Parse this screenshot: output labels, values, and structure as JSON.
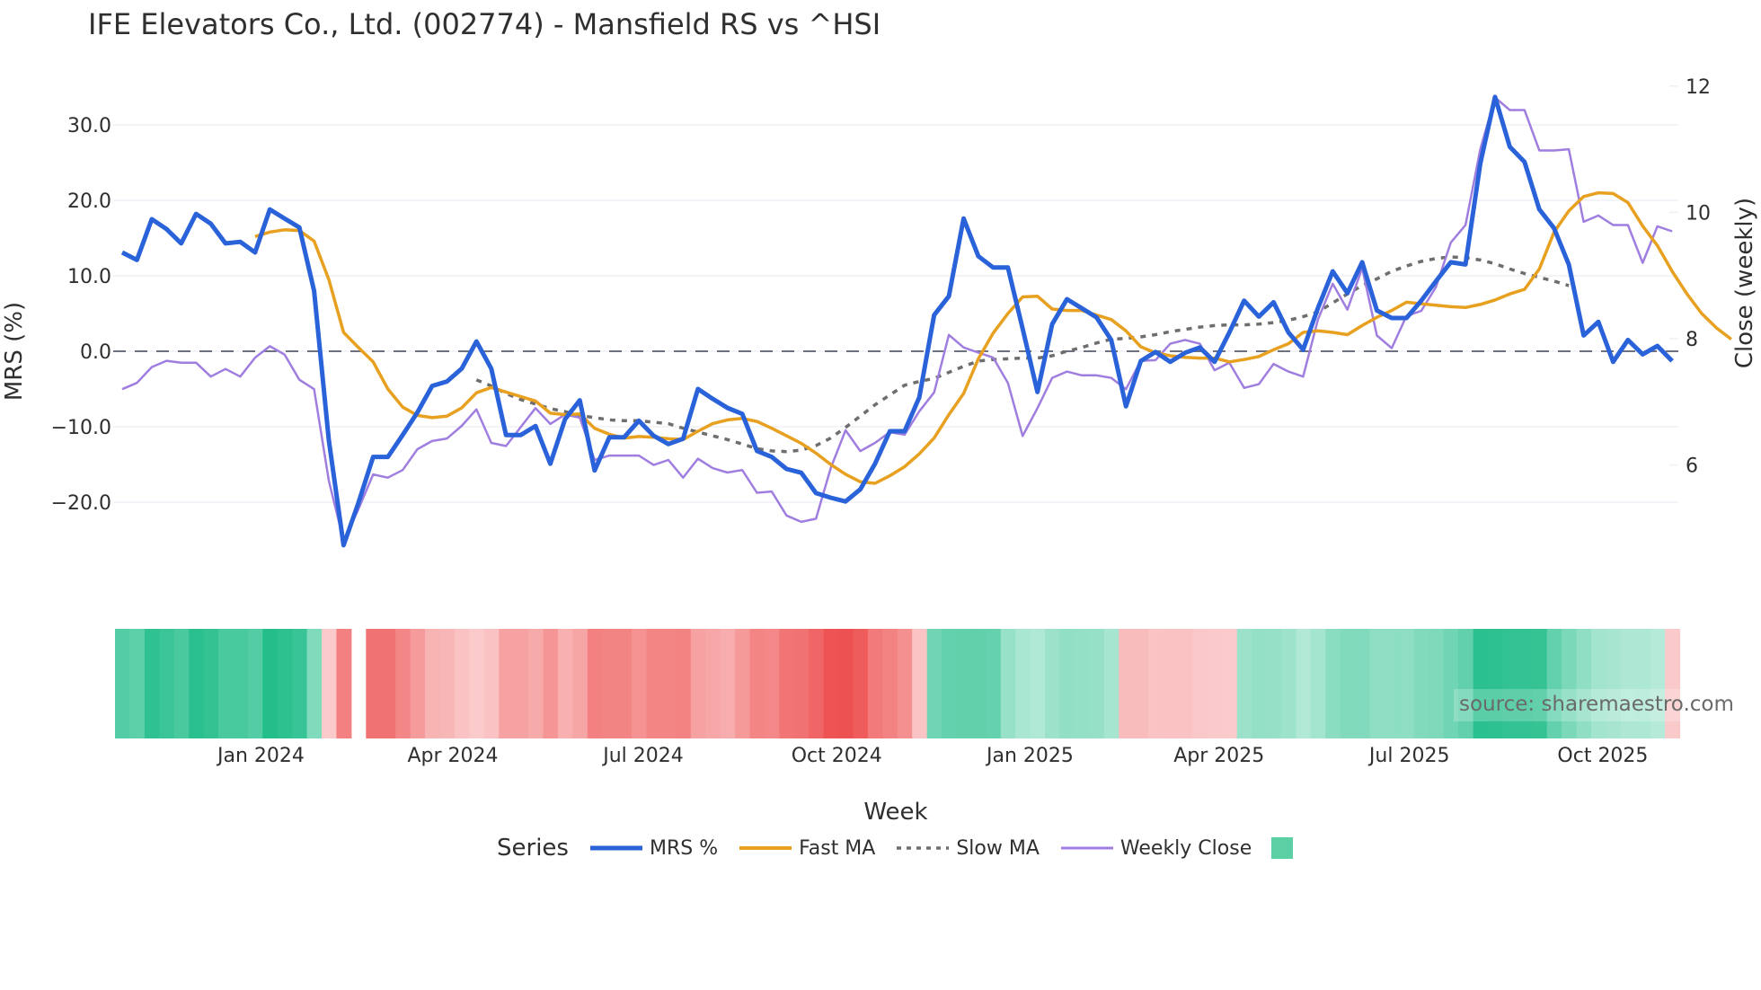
{
  "title": "IFE Elevators Co., Ltd. (002774) - Mansfield RS vs ^HSI",
  "source": "source: sharemaestro.com",
  "legend": {
    "title": "Series",
    "items": [
      {
        "label": "MRS %",
        "color": "#2962d9",
        "style": "solid"
      },
      {
        "label": "Fast MA",
        "color": "#e8a020",
        "style": "solid"
      },
      {
        "label": "Slow MA",
        "color": "#6e6e6e",
        "style": "dotted"
      },
      {
        "label": "Weekly Close",
        "color": "#a07ee0",
        "style": "solid"
      },
      {
        "label": "",
        "color": "#5ccfa4",
        "style": "box"
      }
    ]
  },
  "colors": {
    "mrs": "#2962d9",
    "fast_ma": "#e8a020",
    "slow_ma": "#6e6e6e",
    "close": "#a07ee0",
    "zero_line": "#6e7280",
    "grid": "#eef0f5",
    "pos_strong": "#22bd8a",
    "neg_strong": "#ee5050"
  },
  "chart_data": {
    "type": "line",
    "title": "IFE Elevators Co., Ltd. (002774) - Mansfield RS vs ^HSI",
    "xlabel": "Week",
    "ylabel": "MRS (%)",
    "y2label": "Close (weekly)",
    "ylim": [
      -27,
      35
    ],
    "y2lim": [
      4.7,
      12.2
    ],
    "yticks": [
      "30.0",
      "20.0",
      "10.0",
      "0.0",
      "−10.0",
      "−20.0"
    ],
    "ytick_values": [
      30,
      20,
      10,
      0,
      -10,
      -20
    ],
    "y2ticks": [
      "12",
      "10",
      "8",
      "6"
    ],
    "y2tick_values": [
      12,
      10,
      8,
      6
    ],
    "xticks": [
      "Jan 2024",
      "Apr 2024",
      "Jul 2024",
      "Oct 2024",
      "Jan 2025",
      "Apr 2025",
      "Jul 2025",
      "Oct 2025"
    ],
    "xtick_weeks": [
      9.4,
      22.4,
      35.3,
      48.4,
      61.5,
      74.3,
      87.2,
      100.3
    ],
    "grid": true,
    "legend_position": "bottom",
    "zero_line": "dashed",
    "n_weeks": 105,
    "series": [
      {
        "name": "MRS %",
        "axis": "left",
        "values": [
          13.1,
          12.1,
          17.5,
          16.2,
          14.3,
          18.2,
          16.9,
          14.3,
          14.5,
          13.1,
          18.8,
          17.6,
          16.4,
          8.0,
          -11.8,
          -25.7,
          -20.1,
          -14.0,
          -14.0,
          -11.1,
          -8.1,
          -4.6,
          -4.0,
          -2.3,
          1.3,
          -2.3,
          -11.1,
          -11.1,
          -9.9,
          -14.9,
          -9.0,
          -6.5,
          -15.8,
          -11.4,
          -11.4,
          -9.2,
          -11.2,
          -12.3,
          -11.6,
          -5.0,
          -6.3,
          -7.5,
          -8.3,
          -13.2,
          -14.0,
          -15.6,
          -16.1,
          -18.8,
          -19.4,
          -19.9,
          -18.3,
          -14.9,
          -10.6,
          -10.6,
          -6.1,
          4.8,
          7.3,
          17.6,
          12.6,
          11.1,
          11.1,
          3.0,
          -5.4,
          3.6,
          6.9,
          5.7,
          4.5,
          1.5,
          -7.3,
          -1.3,
          -0.1,
          -1.4,
          -0.2,
          0.5,
          -1.4,
          2.5,
          6.7,
          4.6,
          6.5,
          2.5,
          0.2,
          5.7,
          10.6,
          7.7,
          11.8,
          5.4,
          4.4,
          4.4,
          6.7,
          9.3,
          11.8,
          11.5,
          24.9,
          33.7,
          27.1,
          25.1,
          18.8,
          16.3,
          11.5,
          2.1,
          3.9,
          -1.4,
          1.5,
          -0.4,
          0.7,
          -1.3
        ]
      },
      {
        "name": "Fast MA",
        "axis": "left",
        "start_week": 9,
        "values": [
          15.2,
          15.8,
          16.1,
          16.0,
          14.6,
          9.5,
          2.5,
          0.5,
          -1.4,
          -5.0,
          -7.4,
          -8.5,
          -8.8,
          -8.6,
          -7.5,
          -5.5,
          -4.8,
          -5.4,
          -6.0,
          -6.6,
          -8.2,
          -8.4,
          -8.3,
          -10.2,
          -11.0,
          -11.5,
          -11.3,
          -11.4,
          -11.6,
          -11.7,
          -10.6,
          -9.6,
          -9.1,
          -8.9,
          -9.3,
          -10.2,
          -11.2,
          -12.2,
          -13.5,
          -15.0,
          -16.3,
          -17.3,
          -17.5,
          -16.5,
          -15.3,
          -13.6,
          -11.5,
          -8.4,
          -5.6,
          -1.0,
          2.4,
          5.0,
          7.2,
          7.3,
          5.6,
          5.4,
          5.4,
          4.8,
          4.2,
          2.7,
          0.6,
          -0.2,
          -0.6,
          -0.8,
          -0.9,
          -0.9,
          -1.4,
          -1.1,
          -0.7,
          0.2,
          1.0,
          2.5,
          2.7,
          2.5,
          2.2,
          3.4,
          4.5,
          5.4,
          6.5,
          6.3,
          6.1,
          5.9,
          5.8,
          6.2,
          6.8,
          7.6,
          8.2,
          10.9,
          15.8,
          18.6,
          20.5,
          21.0,
          20.9,
          19.7,
          16.6,
          14.0,
          10.6,
          7.6,
          5.0,
          3.1,
          1.6
        ]
      },
      {
        "name": "Slow MA",
        "axis": "left",
        "start_week": 24,
        "values": [
          -3.8,
          -4.6,
          -5.6,
          -6.4,
          -7.0,
          -7.6,
          -8.0,
          -8.5,
          -8.8,
          -9.1,
          -9.2,
          -9.2,
          -9.4,
          -9.6,
          -10.2,
          -10.7,
          -11.2,
          -11.7,
          -12.3,
          -12.9,
          -13.2,
          -13.3,
          -13.1,
          -12.5,
          -11.5,
          -10.1,
          -8.6,
          -7.1,
          -5.8,
          -4.5,
          -4.0,
          -3.6,
          -2.8,
          -2.0,
          -1.3,
          -1.1,
          -1.0,
          -0.9,
          -0.9,
          -0.6,
          0.0,
          0.5,
          1.1,
          1.6,
          1.7,
          1.9,
          2.2,
          2.6,
          2.9,
          3.2,
          3.4,
          3.5,
          3.5,
          3.6,
          3.8,
          4.1,
          4.6,
          5.2,
          6.4,
          7.6,
          8.7,
          9.6,
          10.6,
          11.3,
          11.9,
          12.3,
          12.5,
          12.4,
          12.1,
          11.6,
          10.9,
          10.3,
          9.8,
          9.3,
          8.7
        ]
      },
      {
        "name": "Weekly Close",
        "axis": "right",
        "values": [
          7.2,
          7.3,
          7.55,
          7.65,
          7.62,
          7.62,
          7.4,
          7.52,
          7.4,
          7.7,
          7.88,
          7.75,
          7.35,
          7.2,
          5.75,
          4.8,
          5.3,
          5.85,
          5.8,
          5.92,
          6.25,
          6.38,
          6.42,
          6.62,
          6.88,
          6.35,
          6.3,
          6.6,
          6.9,
          6.65,
          6.8,
          6.75,
          6.08,
          6.15,
          6.15,
          6.15,
          6.0,
          6.08,
          5.8,
          6.1,
          5.95,
          5.88,
          5.92,
          5.56,
          5.58,
          5.2,
          5.1,
          5.15,
          5.95,
          6.55,
          6.22,
          6.35,
          6.52,
          6.48,
          6.85,
          7.15,
          8.06,
          7.86,
          7.78,
          7.7,
          7.3,
          6.46,
          6.9,
          7.38,
          7.48,
          7.42,
          7.42,
          7.38,
          7.2,
          7.65,
          7.66,
          7.92,
          7.98,
          7.92,
          7.5,
          7.62,
          7.22,
          7.28,
          7.6,
          7.48,
          7.4,
          8.3,
          8.87,
          8.46,
          9.12,
          8.05,
          7.85,
          8.36,
          8.44,
          8.82,
          9.52,
          9.8,
          11.0,
          11.82,
          11.62,
          11.62,
          10.98,
          10.98,
          11.0,
          9.85,
          9.95,
          9.8,
          9.8,
          9.2,
          9.78,
          9.7
        ]
      },
      {
        "name": "Regime strip",
        "axis": "strip",
        "note": "weekly MRS regime heat strip; positive = green, negative = red, intensity ~ magnitude; blank = no data",
        "values": [
          13.1,
          12.1,
          17.5,
          16.2,
          14.3,
          18.2,
          16.9,
          14.3,
          14.5,
          13.1,
          18.8,
          17.6,
          16.4,
          8.0,
          -1.0,
          -11.8,
          null,
          -14.0,
          -14.0,
          -11.1,
          -8.1,
          -4.6,
          -4.0,
          -2.3,
          -1.0,
          -2.3,
          -7.1,
          -7.1,
          -5.9,
          -8.9,
          -5.0,
          -6.5,
          -11.8,
          -11.4,
          -11.4,
          -9.2,
          -11.2,
          -11.3,
          -11.6,
          -7.0,
          -6.3,
          -5.5,
          -8.3,
          -11.2,
          -11.0,
          -13.6,
          -14.1,
          -15.8,
          -18.4,
          -18.9,
          -17.3,
          -12.9,
          -11.6,
          -9.6,
          -2.1,
          9.8,
          11.3,
          11.6,
          11.6,
          11.1,
          5.1,
          3.0,
          2.4,
          4.6,
          5.9,
          5.7,
          5.5,
          3.5,
          -3.3,
          -3.3,
          -2.1,
          -2.4,
          -2.2,
          -1.5,
          -1.4,
          -1.0,
          4.7,
          5.6,
          5.5,
          4.5,
          2.2,
          3.7,
          6.6,
          7.7,
          7.8,
          6.4,
          6.4,
          6.4,
          7.7,
          8.3,
          9.8,
          11.5,
          17.9,
          17.7,
          17.1,
          17.1,
          16.8,
          11.3,
          8.5,
          6.1,
          3.9,
          3.4,
          2.5,
          2.6,
          1.7,
          -1.3
        ]
      }
    ]
  }
}
